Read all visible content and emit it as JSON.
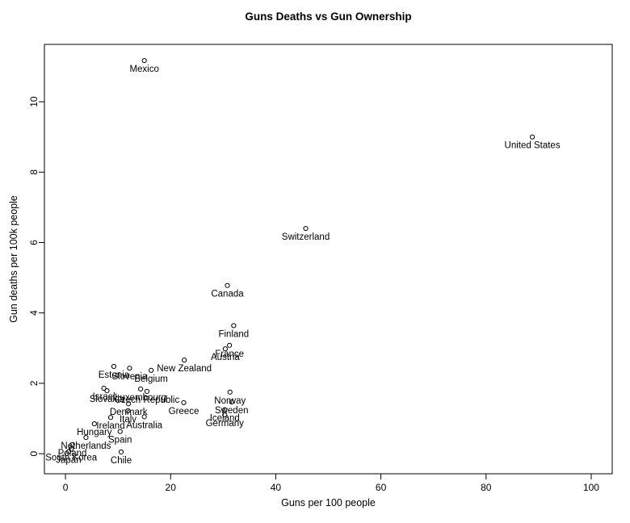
{
  "chart_data": {
    "type": "scatter",
    "title": "Guns Deaths vs Gun Ownership",
    "xlabel": "Guns per 100 people",
    "ylabel": "Gun deaths per 100k people",
    "xlim": [
      -4,
      104
    ],
    "ylim": [
      -0.57,
      11.63
    ],
    "xticks": [
      0,
      20,
      40,
      60,
      80,
      100
    ],
    "yticks": [
      0,
      2,
      4,
      6,
      8,
      10
    ],
    "grid": false,
    "legend": "none",
    "marker": "open-circle",
    "marker_color": "#000000",
    "label_position": "below-point",
    "points": [
      {
        "label": "Mexico",
        "x": 15.0,
        "y": 11.17
      },
      {
        "label": "United States",
        "x": 88.8,
        "y": 9.0
      },
      {
        "label": "Switzerland",
        "x": 45.7,
        "y": 6.4
      },
      {
        "label": "Canada",
        "x": 30.8,
        "y": 4.78
      },
      {
        "label": "Finland",
        "x": 32.0,
        "y": 3.64
      },
      {
        "label": "France",
        "x": 31.2,
        "y": 3.08
      },
      {
        "label": "Austria",
        "x": 30.4,
        "y": 2.98
      },
      {
        "label": "New Zealand",
        "x": 22.6,
        "y": 2.66
      },
      {
        "label": "Estonia",
        "x": 9.2,
        "y": 2.48
      },
      {
        "label": "Slovenia",
        "x": 12.2,
        "y": 2.43
      },
      {
        "label": "Belgium",
        "x": 16.3,
        "y": 2.37
      },
      {
        "label": "Israel",
        "x": 7.3,
        "y": 1.86
      },
      {
        "label": "Luxembourg",
        "x": 14.3,
        "y": 1.84
      },
      {
        "label": "Slovakia",
        "x": 7.9,
        "y": 1.79
      },
      {
        "label": "Czech Republic",
        "x": 15.5,
        "y": 1.77
      },
      {
        "label": "Norway",
        "x": 31.3,
        "y": 1.75
      },
      {
        "label": "Sweden",
        "x": 31.6,
        "y": 1.47
      },
      {
        "label": "Greece",
        "x": 22.5,
        "y": 1.45
      },
      {
        "label": "Denmark",
        "x": 12.0,
        "y": 1.42
      },
      {
        "label": "Iceland",
        "x": 30.3,
        "y": 1.25
      },
      {
        "label": "Italy",
        "x": 11.9,
        "y": 1.22
      },
      {
        "label": "Germany",
        "x": 30.3,
        "y": 1.1
      },
      {
        "label": "Australia",
        "x": 15.0,
        "y": 1.05
      },
      {
        "label": "Ireland",
        "x": 8.6,
        "y": 1.03
      },
      {
        "label": "Hungary",
        "x": 5.5,
        "y": 0.85
      },
      {
        "label": "Spain",
        "x": 10.4,
        "y": 0.63
      },
      {
        "label": "Netherlands",
        "x": 3.9,
        "y": 0.46
      },
      {
        "label": "Poland",
        "x": 1.3,
        "y": 0.26
      },
      {
        "label": "South Korea",
        "x": 1.1,
        "y": 0.13
      },
      {
        "label": "Japan",
        "x": 0.6,
        "y": 0.06
      },
      {
        "label": "Chile",
        "x": 10.6,
        "y": 0.05
      }
    ]
  }
}
